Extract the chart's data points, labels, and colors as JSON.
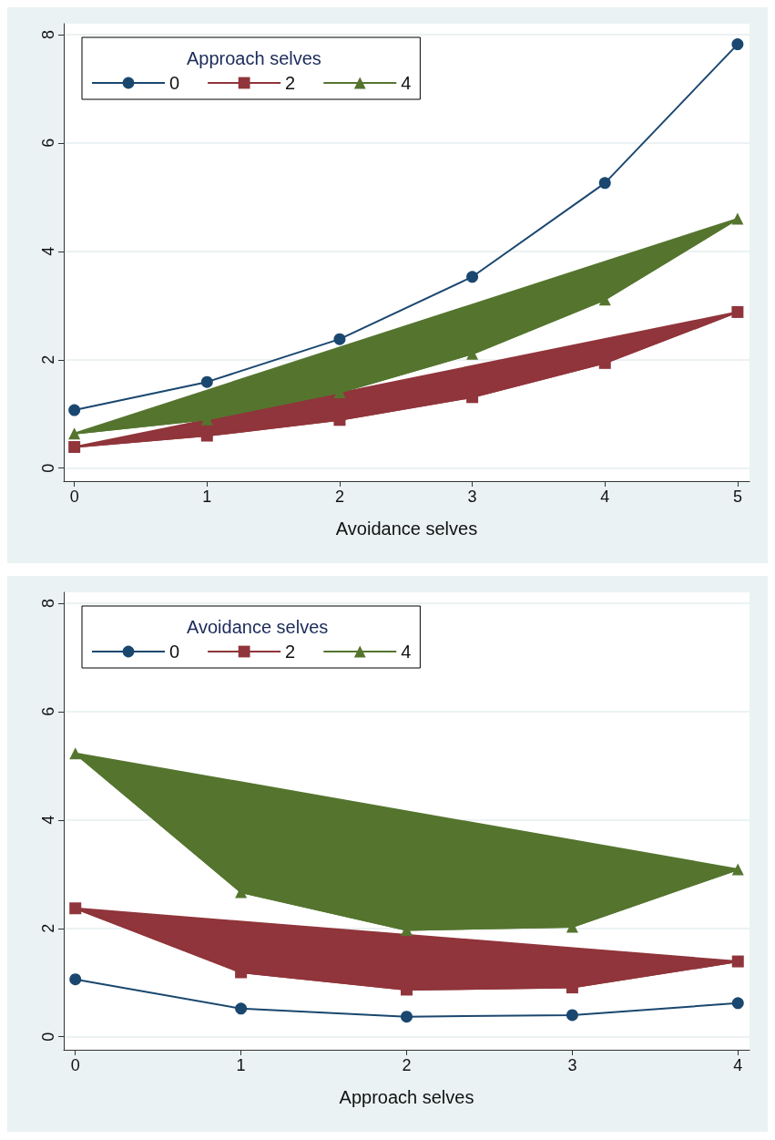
{
  "chart_data": [
    {
      "type": "line",
      "xlabel": "Avoidance selves",
      "legend_title": "Approach selves",
      "x": [
        0,
        1,
        2,
        3,
        4,
        5
      ],
      "xlim": [
        -0.08,
        5.09
      ],
      "xticks": [
        0,
        1,
        2,
        3,
        4,
        5
      ],
      "ylim": [
        -0.24,
        8.2
      ],
      "yticks": [
        0,
        2,
        4,
        6,
        8
      ],
      "grid": "y",
      "legend": "top left",
      "series": [
        {
          "name": "0",
          "marker": "circle",
          "color": "#1a476f",
          "values": [
            1.07,
            1.59,
            2.38,
            3.53,
            5.26,
            7.82
          ]
        },
        {
          "name": "2",
          "type": "area",
          "marker": "square",
          "color": "#90353b",
          "values": [
            0.39,
            0.6,
            0.89,
            1.31,
            1.94,
            2.88
          ]
        },
        {
          "name": "4",
          "type": "area",
          "marker": "triangle",
          "color": "#55752f",
          "values": [
            0.64,
            0.9,
            1.4,
            2.11,
            3.11,
            4.6
          ]
        }
      ]
    },
    {
      "type": "line",
      "xlabel": "Approach selves",
      "legend_title": "Avoidance selves",
      "x": [
        0,
        1,
        2,
        3,
        4
      ],
      "xlim": [
        -0.07,
        4.07
      ],
      "xticks": [
        0,
        1,
        2,
        3,
        4
      ],
      "ylim": [
        -0.24,
        8.2
      ],
      "yticks": [
        0,
        2,
        4,
        6,
        8
      ],
      "grid": "y",
      "legend": "top left",
      "series": [
        {
          "name": "0",
          "marker": "circle",
          "color": "#1a476f",
          "values": [
            1.06,
            0.52,
            0.37,
            0.4,
            0.62
          ]
        },
        {
          "name": "2",
          "type": "area",
          "marker": "square",
          "color": "#90353b",
          "values": [
            2.37,
            1.19,
            0.87,
            0.91,
            1.39
          ]
        },
        {
          "name": "4",
          "type": "area",
          "marker": "triangle",
          "color": "#55752f",
          "values": [
            5.23,
            2.67,
            1.97,
            2.03,
            3.09
          ]
        }
      ]
    }
  ]
}
